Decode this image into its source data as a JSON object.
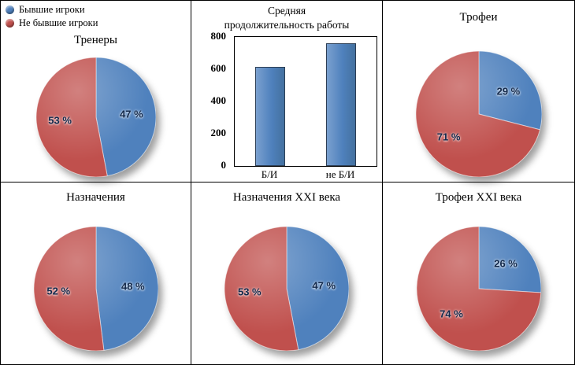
{
  "colors": {
    "blue": "#4f81bd",
    "red": "#c0504d"
  },
  "legend": {
    "position": "top-left",
    "items": [
      {
        "label": "Бывшие игроки",
        "color_key": "blue"
      },
      {
        "label": "Не бывшие игроки",
        "color_key": "red"
      }
    ]
  },
  "chart_data": [
    {
      "type": "pie",
      "title": "Тренеры",
      "labels": [
        "Бывшие игроки",
        "Не бывшие игроки"
      ],
      "values": [
        47,
        53
      ],
      "value_labels": [
        "47 %",
        "53 %"
      ],
      "colors": [
        "#4f81bd",
        "#c0504d"
      ],
      "start_angle_deg": 0
    },
    {
      "type": "bar",
      "title": "Средняя\nпродолжительность работы",
      "categories": [
        "Б/И",
        "не Б/И"
      ],
      "values": [
        615,
        760
      ],
      "ylim": [
        0,
        800
      ],
      "yticks": [
        0,
        200,
        400,
        600,
        800
      ],
      "bar_color": "#4f81bd",
      "grid": false
    },
    {
      "type": "pie",
      "title": "Трофеи",
      "labels": [
        "Бывшие игроки",
        "Не бывшие игроки"
      ],
      "values": [
        29,
        71
      ],
      "value_labels": [
        "29 %",
        "71 %"
      ],
      "colors": [
        "#4f81bd",
        "#c0504d"
      ],
      "start_angle_deg": 0
    },
    {
      "type": "pie",
      "title": "Назначения",
      "labels": [
        "Бывшие игроки",
        "Не бывшие игроки"
      ],
      "values": [
        48,
        52
      ],
      "value_labels": [
        "48 %",
        "52 %"
      ],
      "colors": [
        "#4f81bd",
        "#c0504d"
      ],
      "start_angle_deg": 0
    },
    {
      "type": "pie",
      "title": "Назначения XXI века",
      "labels": [
        "Бывшие игроки",
        "Не бывшие игроки"
      ],
      "values": [
        47,
        53
      ],
      "value_labels": [
        "47 %",
        "53 %"
      ],
      "colors": [
        "#4f81bd",
        "#c0504d"
      ],
      "start_angle_deg": 0
    },
    {
      "type": "pie",
      "title": "Трофеи XXI века",
      "labels": [
        "Бывшие игроки",
        "Не бывшие игроки"
      ],
      "values": [
        26,
        74
      ],
      "value_labels": [
        "26 %",
        "74 %"
      ],
      "colors": [
        "#4f81bd",
        "#c0504d"
      ],
      "start_angle_deg": 0
    }
  ]
}
